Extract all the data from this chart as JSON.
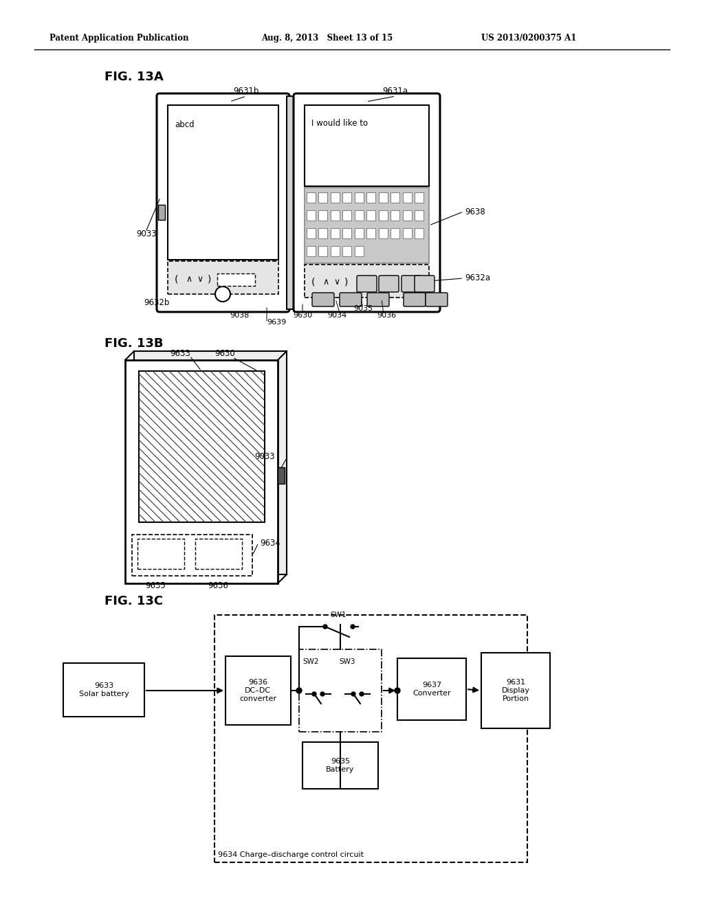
{
  "bg_color": "#ffffff",
  "header_left": "Patent Application Publication",
  "header_mid": "Aug. 8, 2013   Sheet 13 of 15",
  "header_right": "US 2013/0200375 A1",
  "fig13a_label": "FIG. 13A",
  "fig13b_label": "FIG. 13B",
  "fig13c_label": "FIG. 13C"
}
